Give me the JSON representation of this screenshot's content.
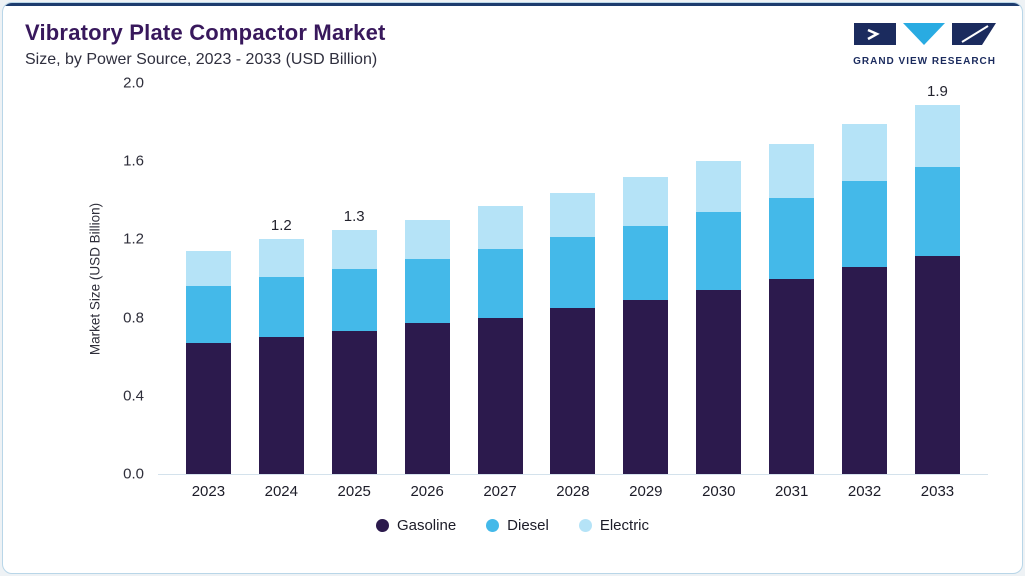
{
  "header": {
    "title": "Vibratory Plate Compactor Market",
    "subtitle": "Size, by Power Source, 2023 - 2033 (USD Billion)",
    "logo_text": "GRAND VIEW RESEARCH"
  },
  "brand_colors": {
    "navy": "#1b2b5e",
    "cyan": "#29abe2",
    "accent_top_bar": "#1d3c6e",
    "title_purple": "#38185c"
  },
  "chart_data": {
    "type": "bar",
    "stacked": true,
    "title": "Vibratory Plate Compactor Market Size, by Power Source, 2023 - 2033 (USD Billion)",
    "categories": [
      "2023",
      "2024",
      "2025",
      "2026",
      "2027",
      "2028",
      "2029",
      "2030",
      "2031",
      "2032",
      "2033"
    ],
    "series": [
      {
        "name": "Gasoline",
        "color": "#2c1a4d",
        "values": [
          0.67,
          0.7,
          0.73,
          0.77,
          0.8,
          0.85,
          0.89,
          0.94,
          1.0,
          1.06,
          1.12
        ]
      },
      {
        "name": "Diesel",
        "color": "#44b9e9",
        "values": [
          0.29,
          0.31,
          0.32,
          0.33,
          0.35,
          0.36,
          0.38,
          0.4,
          0.41,
          0.44,
          0.46
        ]
      },
      {
        "name": "Electric",
        "color": "#b5e3f7",
        "values": [
          0.18,
          0.19,
          0.2,
          0.2,
          0.22,
          0.23,
          0.25,
          0.26,
          0.28,
          0.29,
          0.32
        ]
      }
    ],
    "bar_labels": {
      "2024": "1.2",
      "2025": "1.3",
      "2033": "1.9"
    },
    "xlabel": "",
    "ylabel": "Market Size (USD Billion)",
    "ylim": [
      0,
      2.0
    ],
    "yticks": [
      "0.0",
      "0.4",
      "0.8",
      "1.2",
      "1.6",
      "2.0"
    ],
    "grid": false,
    "legend": [
      "Gasoline",
      "Diesel",
      "Electric"
    ],
    "legend_position": "bottom"
  }
}
